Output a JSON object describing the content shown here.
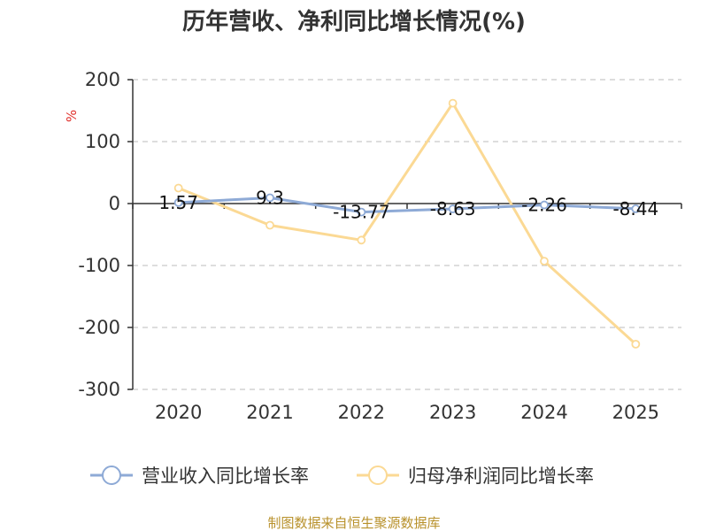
{
  "colors": {
    "revenue": "#8eaad6",
    "profit": "#fbd994",
    "axis": "#333333",
    "grid": "#bbbbbb",
    "unit": "#e0302b",
    "source": "#b8912b"
  },
  "source_note": "制图数据来自恒生聚源数据库",
  "chart_data": {
    "type": "line",
    "title": "历年营收、净利同比增长情况(%)",
    "ylabel": "%",
    "xlabel": "",
    "categories": [
      "2020",
      "2021",
      "2022",
      "2023",
      "2024",
      "2025"
    ],
    "ylim": [
      -300,
      200
    ],
    "yticks": [
      200,
      100,
      0,
      -100,
      -200,
      -300
    ],
    "grid": true,
    "legend_position": "bottom",
    "series": [
      {
        "name": "营业收入同比增长率",
        "values": [
          1.57,
          9.3,
          -13.77,
          -8.63,
          -2.26,
          -8.44
        ],
        "labels": [
          "1.57",
          "9.3",
          "-13.77",
          "-8.63",
          "-2.26",
          "-8.44"
        ]
      },
      {
        "name": "归母净利润同比增长率",
        "values": [
          25,
          -35,
          -59,
          162,
          -93,
          -227
        ]
      }
    ]
  }
}
